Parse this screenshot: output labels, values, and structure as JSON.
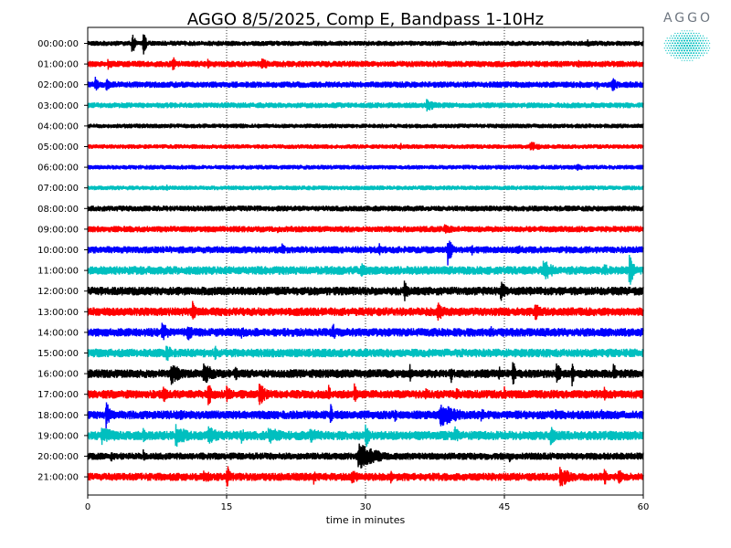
{
  "chart_data": {
    "type": "line",
    "title": "AGGO 8/5/2025, Comp E, Bandpass 1-10Hz",
    "xlabel": "time in minutes",
    "ylabel": "",
    "xlim": [
      0,
      60
    ],
    "xticks": [
      0,
      15,
      30,
      45,
      60
    ],
    "vertical_gridlines_at": [
      15,
      30,
      45
    ],
    "grid_style": "dotted",
    "row_labels": [
      "00:00:00",
      "01:00:00",
      "02:00:00",
      "03:00:00",
      "04:00:00",
      "05:00:00",
      "06:00:00",
      "07:00:00",
      "08:00:00",
      "09:00:00",
      "10:00:00",
      "11:00:00",
      "12:00:00",
      "13:00:00",
      "14:00:00",
      "15:00:00",
      "16:00:00",
      "17:00:00",
      "18:00:00",
      "19:00:00",
      "20:00:00",
      "21:00:00"
    ],
    "color_cycle": [
      "#000000",
      "#ff0000",
      "#0000ff",
      "#00bfbf"
    ],
    "series": [
      {
        "label": "00:00:00",
        "color": "#000000",
        "noise": 0.18,
        "events": [
          {
            "t": 4.8,
            "amp": 1.0,
            "dur": 0.3
          },
          {
            "t": 6.0,
            "amp": 1.0,
            "dur": 0.3
          },
          {
            "t": 54.0,
            "amp": 0.35,
            "dur": 0.6
          }
        ]
      },
      {
        "label": "01:00:00",
        "color": "#ff0000",
        "noise": 0.22,
        "events": [
          {
            "t": 2.2,
            "amp": 0.5,
            "dur": 0.6
          },
          {
            "t": 9.2,
            "amp": 0.6,
            "dur": 0.4
          },
          {
            "t": 13.0,
            "amp": 0.5,
            "dur": 0.3
          },
          {
            "t": 18.8,
            "amp": 0.4,
            "dur": 1.5
          },
          {
            "t": 53.0,
            "amp": 0.35,
            "dur": 0.5
          }
        ]
      },
      {
        "label": "02:00:00",
        "color": "#0000ff",
        "noise": 0.22,
        "events": [
          {
            "t": 0.8,
            "amp": 0.6,
            "dur": 0.5
          },
          {
            "t": 2.0,
            "amp": 0.6,
            "dur": 0.4
          },
          {
            "t": 53.2,
            "amp": 0.35,
            "dur": 0.3
          },
          {
            "t": 55.0,
            "amp": 0.4,
            "dur": 0.3
          },
          {
            "t": 56.6,
            "amp": 0.55,
            "dur": 0.8
          }
        ]
      },
      {
        "label": "03:00:00",
        "color": "#00bfbf",
        "noise": 0.2,
        "events": [
          {
            "t": 36.6,
            "amp": 0.45,
            "dur": 1.5
          },
          {
            "t": 14.0,
            "amp": 0.25,
            "dur": 0.5
          }
        ]
      },
      {
        "label": "04:00:00",
        "color": "#000000",
        "noise": 0.16,
        "events": []
      },
      {
        "label": "05:00:00",
        "color": "#ff0000",
        "noise": 0.16,
        "events": [
          {
            "t": 33.8,
            "amp": 0.3,
            "dur": 0.3
          },
          {
            "t": 47.8,
            "amp": 0.4,
            "dur": 1.5
          }
        ]
      },
      {
        "label": "06:00:00",
        "color": "#0000ff",
        "noise": 0.16,
        "events": [
          {
            "t": 24.9,
            "amp": 0.3,
            "dur": 0.3
          },
          {
            "t": 52.8,
            "amp": 0.3,
            "dur": 1.2
          }
        ]
      },
      {
        "label": "07:00:00",
        "color": "#00bfbf",
        "noise": 0.16,
        "events": [
          {
            "t": 8.5,
            "amp": 0.3,
            "dur": 0.3
          }
        ]
      },
      {
        "label": "08:00:00",
        "color": "#000000",
        "noise": 0.2,
        "events": [
          {
            "t": 9.0,
            "amp": 0.3,
            "dur": 0.4
          },
          {
            "t": 20.5,
            "amp": 0.25,
            "dur": 0.5
          }
        ]
      },
      {
        "label": "09:00:00",
        "color": "#ff0000",
        "noise": 0.22,
        "events": [
          {
            "t": 20.5,
            "amp": 0.3,
            "dur": 0.5
          },
          {
            "t": 38.5,
            "amp": 0.35,
            "dur": 2.0
          }
        ]
      },
      {
        "label": "10:00:00",
        "color": "#0000ff",
        "noise": 0.25,
        "events": [
          {
            "t": 21.0,
            "amp": 0.45,
            "dur": 0.6
          },
          {
            "t": 31.5,
            "amp": 0.5,
            "dur": 0.4
          },
          {
            "t": 38.9,
            "amp": 1.3,
            "dur": 0.4
          },
          {
            "t": 41.5,
            "amp": 0.45,
            "dur": 0.3
          },
          {
            "t": 46.5,
            "amp": 0.45,
            "dur": 0.4
          }
        ]
      },
      {
        "label": "11:00:00",
        "color": "#00bfbf",
        "noise": 0.3,
        "events": [
          {
            "t": 29.5,
            "amp": 0.6,
            "dur": 1.0
          },
          {
            "t": 49.2,
            "amp": 0.8,
            "dur": 1.4
          },
          {
            "t": 55.8,
            "amp": 0.65,
            "dur": 0.5
          },
          {
            "t": 58.5,
            "amp": 1.3,
            "dur": 0.5
          }
        ]
      },
      {
        "label": "12:00:00",
        "color": "#000000",
        "noise": 0.3,
        "events": [
          {
            "t": 34.2,
            "amp": 0.8,
            "dur": 0.5
          },
          {
            "t": 44.6,
            "amp": 0.9,
            "dur": 0.6
          },
          {
            "t": 9.0,
            "amp": 0.4,
            "dur": 0.8
          }
        ]
      },
      {
        "label": "13:00:00",
        "color": "#ff0000",
        "noise": 0.3,
        "events": [
          {
            "t": 11.3,
            "amp": 0.8,
            "dur": 0.6
          },
          {
            "t": 37.8,
            "amp": 0.75,
            "dur": 1.0
          },
          {
            "t": 48.3,
            "amp": 0.65,
            "dur": 1.0
          },
          {
            "t": 21.5,
            "amp": 0.35,
            "dur": 0.5
          }
        ]
      },
      {
        "label": "14:00:00",
        "color": "#0000ff",
        "noise": 0.3,
        "events": [
          {
            "t": 8.0,
            "amp": 0.85,
            "dur": 0.8
          },
          {
            "t": 10.8,
            "amp": 0.75,
            "dur": 0.6
          },
          {
            "t": 16.6,
            "amp": 0.55,
            "dur": 0.5
          },
          {
            "t": 24.0,
            "amp": 0.45,
            "dur": 0.4
          },
          {
            "t": 26.4,
            "amp": 0.85,
            "dur": 0.4
          },
          {
            "t": 43.5,
            "amp": 0.5,
            "dur": 0.5
          }
        ]
      },
      {
        "label": "15:00:00",
        "color": "#00bfbf",
        "noise": 0.3,
        "events": [
          {
            "t": 8.5,
            "amp": 0.7,
            "dur": 0.8
          },
          {
            "t": 13.7,
            "amp": 0.7,
            "dur": 0.3
          }
        ]
      },
      {
        "label": "16:00:00",
        "color": "#000000",
        "noise": 0.3,
        "events": [
          {
            "t": 9.0,
            "amp": 0.8,
            "dur": 1.5
          },
          {
            "t": 12.5,
            "amp": 0.8,
            "dur": 1.5
          },
          {
            "t": 15.9,
            "amp": 0.8,
            "dur": 0.3
          },
          {
            "t": 34.8,
            "amp": 0.7,
            "dur": 0.3
          },
          {
            "t": 39.2,
            "amp": 0.8,
            "dur": 0.3
          },
          {
            "t": 44.4,
            "amp": 0.7,
            "dur": 0.3
          },
          {
            "t": 45.9,
            "amp": 1.2,
            "dur": 0.3
          },
          {
            "t": 50.6,
            "amp": 0.8,
            "dur": 1.0
          },
          {
            "t": 52.3,
            "amp": 1.1,
            "dur": 0.3
          },
          {
            "t": 56.8,
            "amp": 0.9,
            "dur": 0.3
          }
        ]
      },
      {
        "label": "17:00:00",
        "color": "#ff0000",
        "noise": 0.3,
        "events": [
          {
            "t": 8.2,
            "amp": 0.75,
            "dur": 0.5
          },
          {
            "t": 13.0,
            "amp": 0.85,
            "dur": 0.8
          },
          {
            "t": 15.0,
            "amp": 0.7,
            "dur": 0.6
          },
          {
            "t": 18.5,
            "amp": 0.85,
            "dur": 1.0
          },
          {
            "t": 26.0,
            "amp": 0.8,
            "dur": 0.3
          },
          {
            "t": 28.8,
            "amp": 0.9,
            "dur": 0.3
          },
          {
            "t": 36.5,
            "amp": 0.45,
            "dur": 0.8
          },
          {
            "t": 39.8,
            "amp": 0.55,
            "dur": 0.6
          },
          {
            "t": 45.0,
            "amp": 0.55,
            "dur": 0.3
          },
          {
            "t": 55.8,
            "amp": 0.6,
            "dur": 0.3
          }
        ]
      },
      {
        "label": "18:00:00",
        "color": "#0000ff",
        "noise": 0.3,
        "events": [
          {
            "t": 2.0,
            "amp": 1.2,
            "dur": 0.5
          },
          {
            "t": 10.0,
            "amp": 0.5,
            "dur": 1.0
          },
          {
            "t": 26.2,
            "amp": 0.95,
            "dur": 0.3
          },
          {
            "t": 33.2,
            "amp": 0.55,
            "dur": 0.5
          },
          {
            "t": 38.0,
            "amp": 0.9,
            "dur": 2.5
          },
          {
            "t": 42.5,
            "amp": 0.55,
            "dur": 0.6
          },
          {
            "t": 50.5,
            "amp": 0.45,
            "dur": 0.5
          },
          {
            "t": 55.5,
            "amp": 0.45,
            "dur": 0.5
          }
        ]
      },
      {
        "label": "19:00:00",
        "color": "#00bfbf",
        "noise": 0.32,
        "events": [
          {
            "t": 1.5,
            "amp": 0.7,
            "dur": 2.0
          },
          {
            "t": 6.0,
            "amp": 0.6,
            "dur": 1.0
          },
          {
            "t": 9.5,
            "amp": 0.85,
            "dur": 1.5
          },
          {
            "t": 13.0,
            "amp": 0.75,
            "dur": 1.5
          },
          {
            "t": 16.5,
            "amp": 0.6,
            "dur": 1.5
          },
          {
            "t": 19.5,
            "amp": 0.6,
            "dur": 3.0
          },
          {
            "t": 24.0,
            "amp": 0.6,
            "dur": 2.0
          },
          {
            "t": 30.0,
            "amp": 1.0,
            "dur": 0.5
          },
          {
            "t": 39.6,
            "amp": 0.75,
            "dur": 0.6
          },
          {
            "t": 50.0,
            "amp": 0.9,
            "dur": 0.6
          }
        ]
      },
      {
        "label": "20:00:00",
        "color": "#000000",
        "noise": 0.25,
        "events": [
          {
            "t": 2.5,
            "amp": 0.5,
            "dur": 0.3
          },
          {
            "t": 6.0,
            "amp": 0.5,
            "dur": 0.3
          },
          {
            "t": 29.2,
            "amp": 0.95,
            "dur": 2.5
          },
          {
            "t": 45.5,
            "amp": 0.5,
            "dur": 0.4
          },
          {
            "t": 54.0,
            "amp": 0.4,
            "dur": 0.4
          }
        ]
      },
      {
        "label": "21:00:00",
        "color": "#ff0000",
        "noise": 0.28,
        "events": [
          {
            "t": 12.5,
            "amp": 0.45,
            "dur": 2.0
          },
          {
            "t": 15.0,
            "amp": 1.1,
            "dur": 0.4
          },
          {
            "t": 24.4,
            "amp": 0.6,
            "dur": 0.4
          },
          {
            "t": 28.5,
            "amp": 0.5,
            "dur": 1.5
          },
          {
            "t": 32.7,
            "amp": 0.5,
            "dur": 0.4
          },
          {
            "t": 51.0,
            "amp": 0.75,
            "dur": 1.8
          },
          {
            "t": 55.8,
            "amp": 0.7,
            "dur": 0.4
          },
          {
            "t": 57.3,
            "amp": 0.6,
            "dur": 0.8
          }
        ]
      }
    ]
  },
  "logo": {
    "text": "AGGO",
    "color": "#00bfbf"
  }
}
